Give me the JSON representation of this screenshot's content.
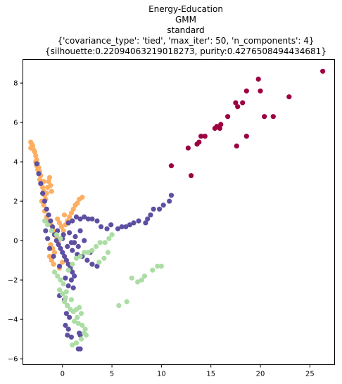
{
  "chart_data": {
    "type": "scatter",
    "title_lines": [
      "Energy-Education",
      "GMM",
      "standard",
      "{'covariance_type': 'tied', 'max_iter': 50, 'n_components': 4}",
      "{silhouette:0.22094063219018273, purity:0.4276508494434681}"
    ],
    "xlabel": "",
    "ylabel": "",
    "xlim": [
      -4,
      27.5
    ],
    "ylim": [
      -6.3,
      9.2
    ],
    "x_ticks": [
      0,
      5,
      10,
      15,
      20,
      25
    ],
    "y_ticks": [
      -6,
      -4,
      -2,
      0,
      2,
      4,
      6,
      8
    ],
    "grid": false,
    "legend": "none",
    "marker_radius_note": "filled circles",
    "series": [
      {
        "color": "#9e0142",
        "points": [
          [
            26.3,
            8.6
          ],
          [
            19.8,
            8.2
          ],
          [
            20.0,
            7.6
          ],
          [
            18.6,
            7.6
          ],
          [
            22.9,
            7.3
          ],
          [
            17.5,
            7.0
          ],
          [
            18.2,
            7.0
          ],
          [
            17.7,
            6.8
          ],
          [
            20.4,
            6.3
          ],
          [
            21.3,
            6.3
          ],
          [
            16.7,
            6.3
          ],
          [
            16.0,
            5.9
          ],
          [
            15.6,
            5.8
          ],
          [
            15.9,
            5.7
          ],
          [
            15.4,
            5.7
          ],
          [
            14.4,
            5.3
          ],
          [
            14.0,
            5.3
          ],
          [
            13.8,
            5.0
          ],
          [
            13.6,
            4.9
          ],
          [
            17.6,
            4.8
          ],
          [
            18.6,
            5.3
          ],
          [
            12.7,
            4.7
          ],
          [
            11.0,
            3.8
          ],
          [
            13.0,
            3.3
          ]
        ]
      },
      {
        "color": "#fdae61",
        "points": [
          [
            -3.2,
            5.0
          ],
          [
            -3.1,
            4.9
          ],
          [
            -3.0,
            4.8
          ],
          [
            -2.9,
            4.6
          ],
          [
            -3.2,
            4.7
          ],
          [
            -2.8,
            4.5
          ],
          [
            -2.7,
            4.3
          ],
          [
            -2.6,
            4.1
          ],
          [
            -2.5,
            3.9
          ],
          [
            -2.7,
            4.0
          ],
          [
            -2.4,
            3.7
          ],
          [
            -2.3,
            3.5
          ],
          [
            -2.2,
            3.3
          ],
          [
            -2.5,
            3.6
          ],
          [
            -2.3,
            3.1
          ],
          [
            -2.1,
            2.9
          ],
          [
            -2.0,
            2.7
          ],
          [
            -1.9,
            2.5
          ],
          [
            -1.8,
            2.3
          ],
          [
            -1.7,
            2.1
          ],
          [
            -1.6,
            2.4
          ],
          [
            -1.5,
            2.7
          ],
          [
            -1.4,
            3.0
          ],
          [
            -1.3,
            3.2
          ],
          [
            -1.2,
            2.8
          ],
          [
            -1.1,
            2.5
          ],
          [
            -1.9,
            1.8
          ],
          [
            -1.8,
            1.5
          ],
          [
            -1.6,
            1.2
          ],
          [
            -1.4,
            1.0
          ],
          [
            -1.2,
            0.8
          ],
          [
            -1.0,
            0.6
          ],
          [
            -0.8,
            0.4
          ],
          [
            -0.6,
            0.2
          ],
          [
            -0.4,
            0.0
          ],
          [
            -0.3,
            0.9
          ],
          [
            -0.1,
            0.7
          ],
          [
            0.1,
            0.5
          ],
          [
            0.3,
            0.8
          ],
          [
            0.5,
            1.0
          ],
          [
            0.7,
            1.2
          ],
          [
            0.9,
            1.4
          ],
          [
            1.1,
            1.6
          ],
          [
            1.3,
            1.8
          ],
          [
            1.5,
            1.9
          ],
          [
            1.7,
            2.1
          ],
          [
            2.0,
            2.2
          ],
          [
            -1.2,
            -0.2
          ],
          [
            -1.0,
            -0.4
          ],
          [
            -0.8,
            -0.6
          ],
          [
            -1.3,
            -0.8
          ],
          [
            -1.1,
            -1.0
          ],
          [
            -0.9,
            -1.2
          ],
          [
            -0.3,
            -1.4
          ],
          [
            0.0,
            -1.1
          ],
          [
            -2.1,
            2.0
          ],
          [
            -2.6,
            3.8
          ],
          [
            -1.9,
            3.0
          ],
          [
            0.2,
            1.3
          ],
          [
            -0.5,
            1.1
          ]
        ]
      },
      {
        "color": "#5e4fa2",
        "points": [
          [
            11.0,
            2.3
          ],
          [
            10.8,
            2.0
          ],
          [
            10.2,
            1.8
          ],
          [
            9.8,
            1.6
          ],
          [
            9.2,
            1.6
          ],
          [
            8.9,
            1.3
          ],
          [
            8.6,
            1.1
          ],
          [
            8.4,
            0.9
          ],
          [
            7.7,
            1.0
          ],
          [
            7.2,
            0.9
          ],
          [
            6.8,
            0.8
          ],
          [
            6.4,
            0.7
          ],
          [
            6.0,
            0.7
          ],
          [
            5.6,
            0.6
          ],
          [
            4.9,
            0.8
          ],
          [
            4.5,
            0.6
          ],
          [
            3.9,
            0.7
          ],
          [
            3.5,
            1.0
          ],
          [
            3.0,
            1.1
          ],
          [
            2.6,
            1.1
          ],
          [
            2.2,
            1.2
          ],
          [
            1.8,
            1.1
          ],
          [
            1.4,
            1.2
          ],
          [
            1.0,
            1.0
          ],
          [
            0.6,
            0.9
          ],
          [
            -2.6,
            3.9
          ],
          [
            -2.4,
            3.4
          ],
          [
            -2.2,
            2.9
          ],
          [
            -2.0,
            2.4
          ],
          [
            -1.8,
            2.0
          ],
          [
            -1.6,
            1.6
          ],
          [
            -1.4,
            1.3
          ],
          [
            -1.2,
            1.0
          ],
          [
            -1.0,
            0.7
          ],
          [
            -0.8,
            0.3
          ],
          [
            -0.6,
            0.0
          ],
          [
            -0.4,
            -0.2
          ],
          [
            -0.2,
            -0.4
          ],
          [
            0.0,
            -0.6
          ],
          [
            0.2,
            -0.8
          ],
          [
            0.4,
            -1.0
          ],
          [
            0.6,
            -1.2
          ],
          [
            0.8,
            -1.4
          ],
          [
            1.0,
            -1.6
          ],
          [
            1.2,
            -1.8
          ],
          [
            0.5,
            -0.3
          ],
          [
            1.0,
            -0.5
          ],
          [
            1.5,
            -0.7
          ],
          [
            2.0,
            -0.8
          ],
          [
            2.5,
            -1.0
          ],
          [
            3.0,
            -1.2
          ],
          [
            3.5,
            -1.3
          ],
          [
            1.8,
            0.5
          ],
          [
            1.3,
            0.2
          ],
          [
            0.9,
            -0.1
          ],
          [
            -0.5,
            0.5
          ],
          [
            0.1,
            0.3
          ],
          [
            0.7,
            0.4
          ],
          [
            -0.9,
            -0.8
          ],
          [
            -0.3,
            -1.3
          ],
          [
            0.3,
            -1.9
          ],
          [
            0.6,
            -2.3
          ],
          [
            0.9,
            -2.0
          ],
          [
            1.1,
            -2.4
          ],
          [
            -0.3,
            -2.8
          ],
          [
            0.2,
            -3.0
          ],
          [
            0.5,
            -3.3
          ],
          [
            0.4,
            -3.7
          ],
          [
            0.7,
            -3.9
          ],
          [
            0.3,
            -4.3
          ],
          [
            0.6,
            -4.5
          ],
          [
            0.5,
            -4.8
          ],
          [
            0.9,
            -4.9
          ],
          [
            1.7,
            -4.7
          ],
          [
            1.8,
            -4.8
          ],
          [
            1.6,
            -5.5
          ],
          [
            1.8,
            -5.5
          ],
          [
            1.2,
            -0.1
          ],
          [
            2.2,
            0.0
          ],
          [
            1.6,
            -0.3
          ],
          [
            -1.5,
            0.1
          ],
          [
            -1.7,
            0.5
          ],
          [
            -1.3,
            -0.4
          ],
          [
            0.0,
            0.1
          ],
          [
            2.8,
            -0.6
          ]
        ]
      },
      {
        "color": "#abdda4",
        "points": [
          [
            -1.8,
            1.0
          ],
          [
            -1.5,
            0.8
          ],
          [
            -1.1,
            0.5
          ],
          [
            -0.6,
            0.3
          ],
          [
            -0.2,
            0.1
          ],
          [
            -0.5,
            -1.8
          ],
          [
            -0.2,
            -2.0
          ],
          [
            0.1,
            -2.2
          ],
          [
            -0.3,
            -2.5
          ],
          [
            0.0,
            -2.7
          ],
          [
            0.3,
            -2.9
          ],
          [
            0.2,
            -3.1
          ],
          [
            0.5,
            -3.3
          ],
          [
            0.8,
            -3.5
          ],
          [
            1.1,
            -3.6
          ],
          [
            1.4,
            -3.5
          ],
          [
            1.7,
            -3.4
          ],
          [
            1.9,
            -3.7
          ],
          [
            1.5,
            -3.9
          ],
          [
            1.2,
            -4.1
          ],
          [
            1.6,
            -4.2
          ],
          [
            2.0,
            -4.3
          ],
          [
            2.3,
            -4.5
          ],
          [
            2.4,
            -4.8
          ],
          [
            1.9,
            -5.0
          ],
          [
            1.4,
            -5.2
          ],
          [
            1.0,
            -5.3
          ],
          [
            2.2,
            -4.7
          ],
          [
            0.6,
            -1.5
          ],
          [
            1.0,
            -1.2
          ],
          [
            1.4,
            -0.9
          ],
          [
            1.8,
            -0.8
          ],
          [
            2.2,
            -0.6
          ],
          [
            2.6,
            -0.6
          ],
          [
            3.0,
            -0.5
          ],
          [
            3.4,
            -0.3
          ],
          [
            3.8,
            -0.1
          ],
          [
            4.3,
            -0.1
          ],
          [
            4.7,
            0.1
          ],
          [
            5.0,
            0.3
          ],
          [
            4.6,
            -0.6
          ],
          [
            4.2,
            -0.9
          ],
          [
            3.7,
            -1.1
          ],
          [
            5.7,
            -3.3
          ],
          [
            6.5,
            -3.1
          ],
          [
            7.0,
            -1.9
          ],
          [
            7.6,
            -2.1
          ],
          [
            8.0,
            -2.0
          ],
          [
            8.3,
            -1.8
          ],
          [
            9.1,
            -1.5
          ],
          [
            9.6,
            -1.3
          ],
          [
            10.0,
            -1.3
          ],
          [
            -0.8,
            -1.6
          ],
          [
            0.4,
            -2.6
          ],
          [
            0.9,
            -3.0
          ]
        ]
      }
    ]
  }
}
